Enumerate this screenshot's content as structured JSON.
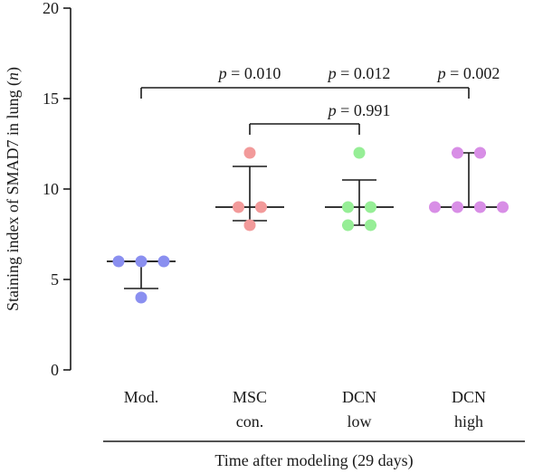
{
  "chart_data": {
    "type": "scatter",
    "title": "",
    "ylabel_prefix": "Staining index of SMAD7 in lung (",
    "ylabel_var": "n",
    "ylabel_suffix": ")",
    "xlabel": "Time after modeling (29 days)",
    "ylim": [
      0,
      20
    ],
    "yticks": [
      0,
      5,
      10,
      15,
      20
    ],
    "grid": false,
    "groups": [
      {
        "name": "Mod.",
        "label_lines": [
          "Mod."
        ],
        "color": "#8a8ff0",
        "points": [
          6,
          6,
          6,
          4
        ],
        "central": 6,
        "error_low": 4.5,
        "error_high": 6
      },
      {
        "name": "MSC con.",
        "label_lines": [
          "MSC",
          "con."
        ],
        "color": "#f29a9a",
        "points": [
          12,
          9,
          9,
          8
        ],
        "central": 9,
        "error_low": 8.25,
        "error_high": 11.25
      },
      {
        "name": "DCN low",
        "label_lines": [
          "DCN",
          "low"
        ],
        "color": "#96ee96",
        "points": [
          12,
          9,
          9,
          8,
          8
        ],
        "central": 9,
        "error_low": 8,
        "error_high": 10.5
      },
      {
        "name": "DCN high",
        "label_lines": [
          "DCN",
          "high"
        ],
        "color": "#d88ee6",
        "points": [
          12,
          12,
          9,
          9,
          9,
          9
        ],
        "central": 9,
        "error_low": 9,
        "error_high": 12
      }
    ],
    "annotations": [
      {
        "p_symbol": "p",
        "text": " = 0.010"
      },
      {
        "p_symbol": "p",
        "text": " = 0.012"
      },
      {
        "p_symbol": "p",
        "text": " = 0.002"
      },
      {
        "p_symbol": "p",
        "text": " = 0.991"
      }
    ]
  }
}
